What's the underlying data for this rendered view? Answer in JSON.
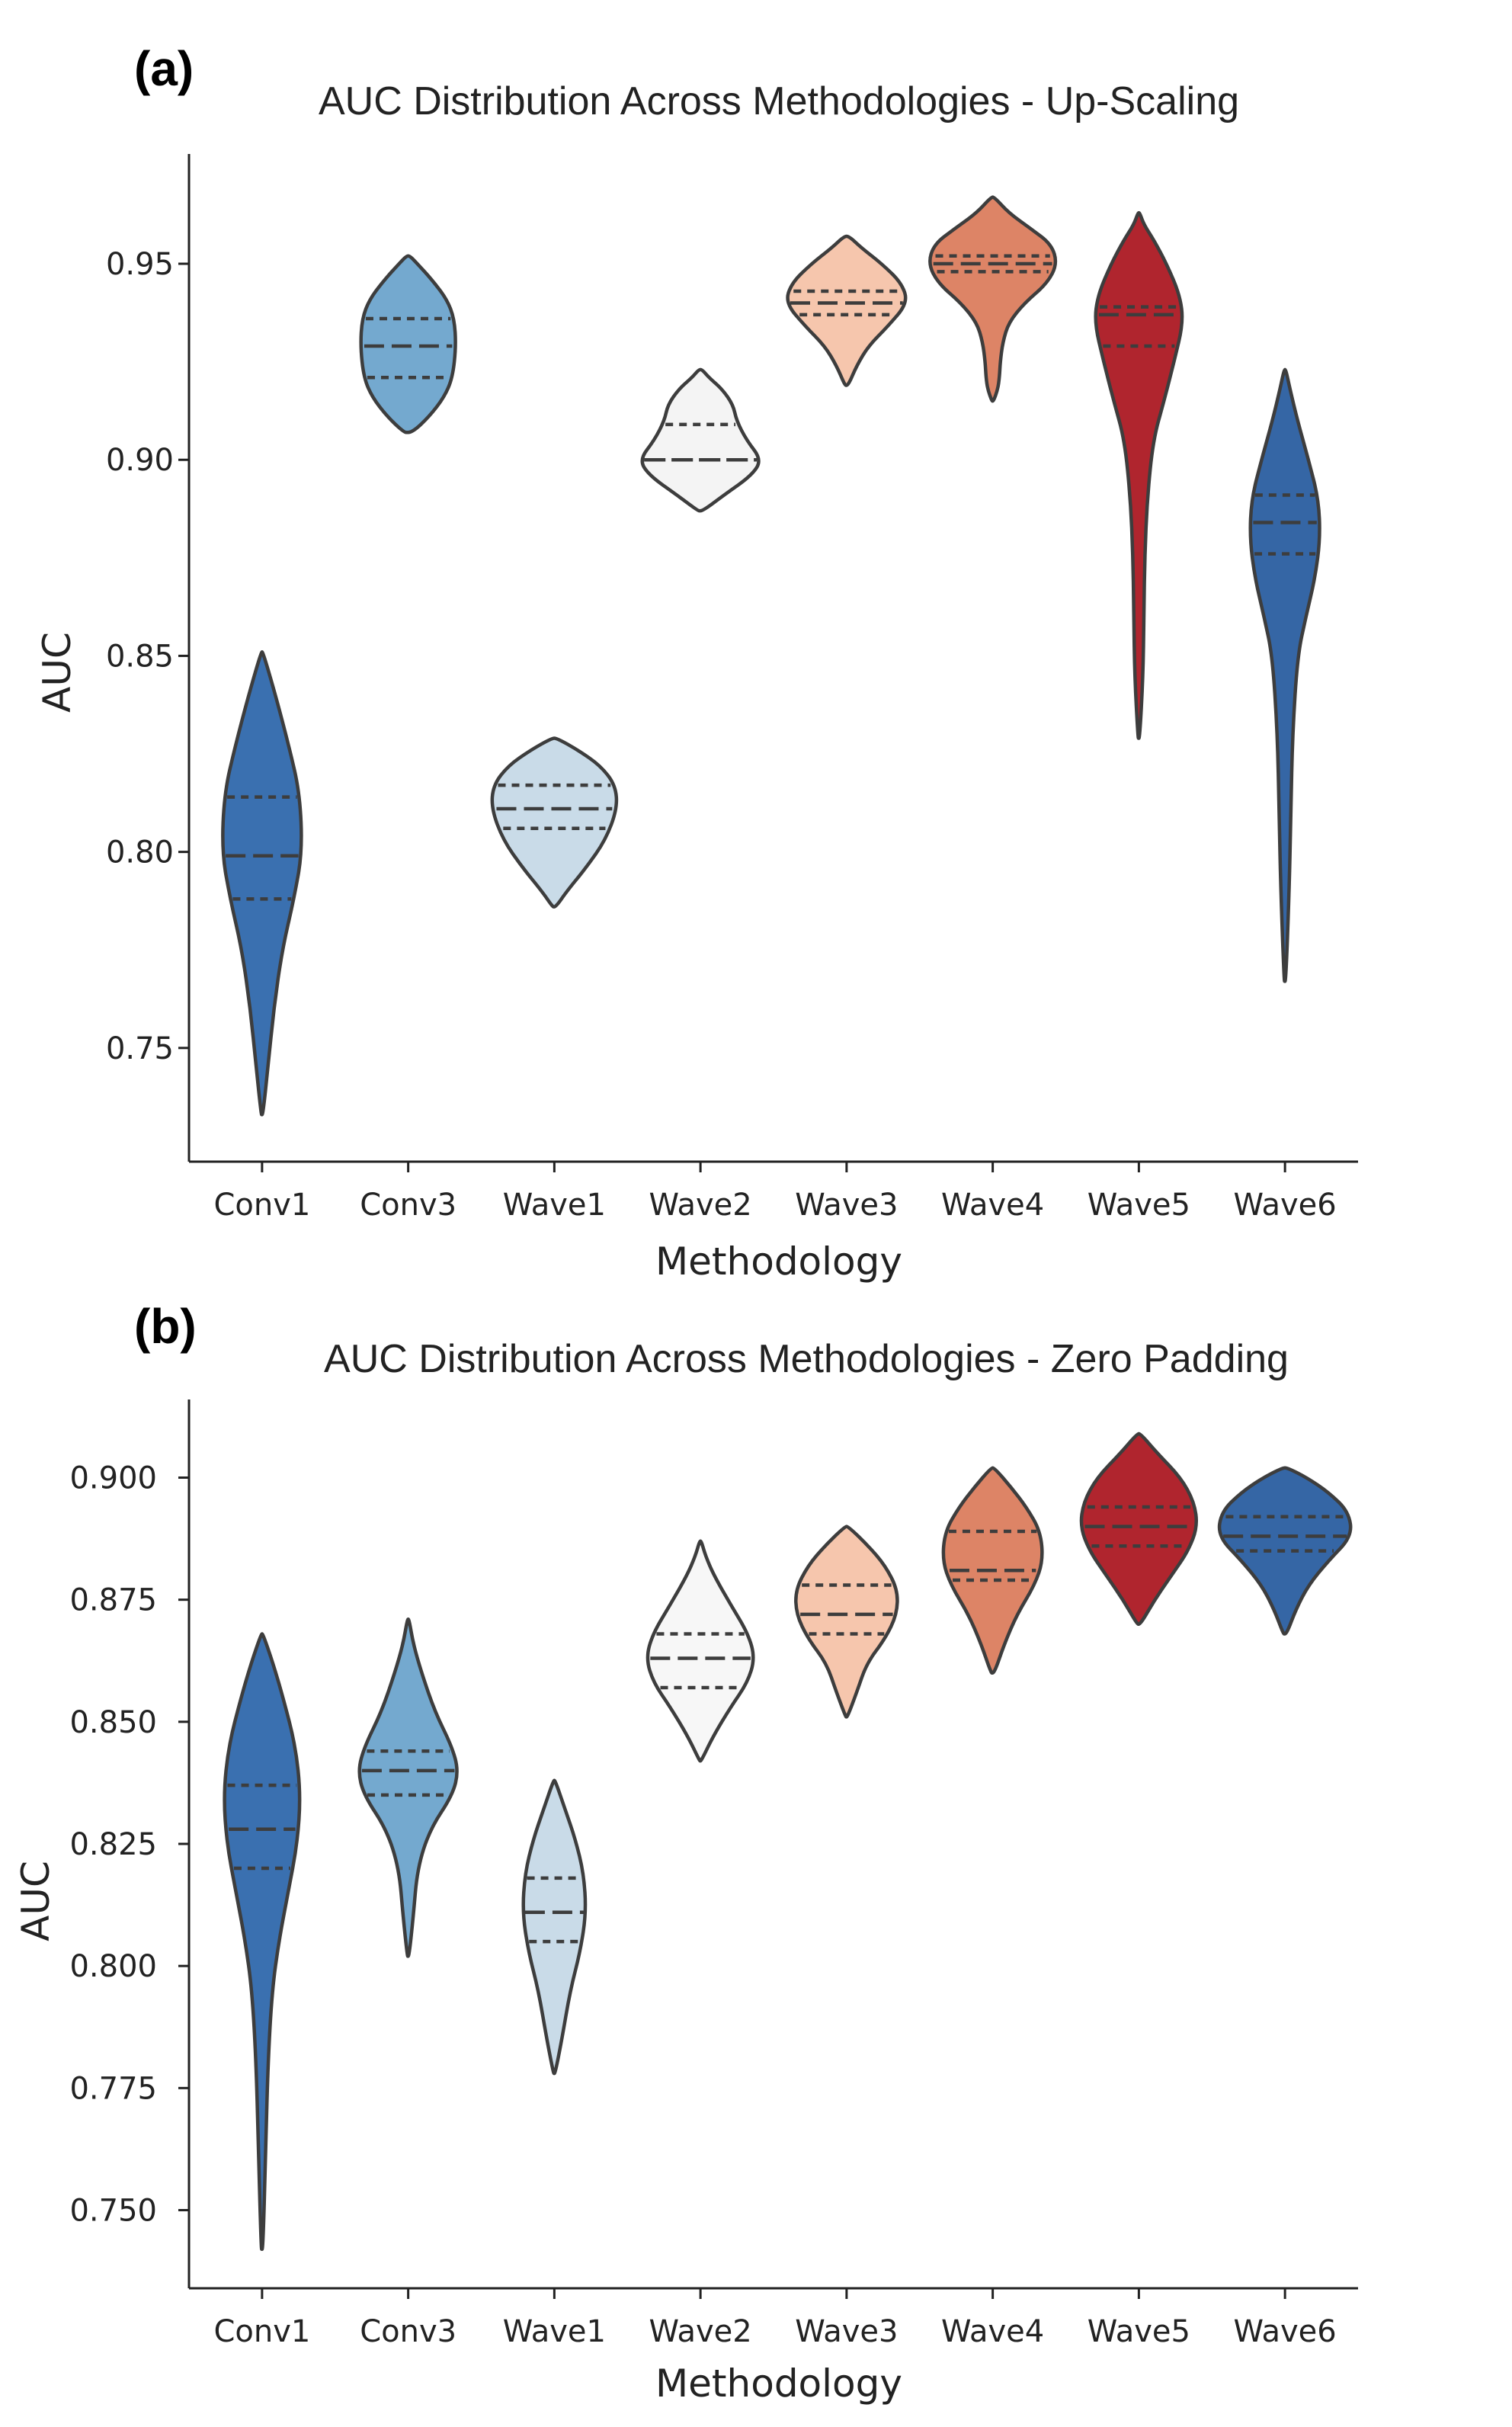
{
  "chart_data": [
    {
      "type": "violin",
      "panel_label": "(a)",
      "title": "AUC Distribution Across Methodologies - Up-Scaling",
      "xlabel": "Methodology",
      "ylabel": "AUC",
      "ylim": [
        0.721,
        0.978
      ],
      "yticks": [
        0.75,
        0.8,
        0.85,
        0.9,
        0.95
      ],
      "ytick_labels": [
        "0.75",
        "0.80",
        "0.85",
        "0.90",
        "0.95"
      ],
      "grid": false,
      "categories": [
        "Conv1",
        "Conv3",
        "Wave1",
        "Wave2",
        "Wave3",
        "Wave4",
        "Wave5",
        "Wave6"
      ],
      "colors": [
        "#3a70b0",
        "#74a9cf",
        "#c9dbe8",
        "#f4f4f4",
        "#f6c6ad",
        "#dd8466",
        "#b0252e",
        "#3566a5"
      ],
      "violins": [
        {
          "min": 0.733,
          "max": 0.851,
          "q1": 0.788,
          "median": 0.799,
          "q3": 0.814,
          "profile": [
            [
              0.733,
              0.1
            ],
            [
              0.745,
              0.7
            ],
            [
              0.76,
              1.4
            ],
            [
              0.775,
              2.4
            ],
            [
              0.788,
              3.8
            ],
            [
              0.8,
              4.8
            ],
            [
              0.815,
              4.5
            ],
            [
              0.827,
              3.2
            ],
            [
              0.84,
              1.6
            ],
            [
              0.851,
              0.1
            ]
          ]
        },
        {
          "min": 0.907,
          "max": 0.952,
          "q1": 0.921,
          "median": 0.929,
          "q3": 0.936,
          "profile": [
            [
              0.907,
              0.5
            ],
            [
              0.911,
              2.5
            ],
            [
              0.916,
              4.3
            ],
            [
              0.921,
              5.3
            ],
            [
              0.929,
              5.7
            ],
            [
              0.936,
              5.5
            ],
            [
              0.941,
              4.6
            ],
            [
              0.946,
              2.8
            ],
            [
              0.95,
              1.1
            ],
            [
              0.952,
              0.2
            ]
          ]
        },
        {
          "min": 0.786,
          "max": 0.829,
          "q1": 0.806,
          "median": 0.811,
          "q3": 0.817,
          "profile": [
            [
              0.786,
              0.2
            ],
            [
              0.79,
              1.5
            ],
            [
              0.796,
              3.8
            ],
            [
              0.803,
              6.1
            ],
            [
              0.811,
              7.5
            ],
            [
              0.817,
              7.3
            ],
            [
              0.822,
              5.5
            ],
            [
              0.826,
              2.8
            ],
            [
              0.829,
              0.3
            ]
          ]
        },
        {
          "min": 0.887,
          "max": 0.923,
          "q1": 0.9,
          "median": 0.9,
          "q3": 0.909,
          "profile": [
            [
              0.887,
              0.3
            ],
            [
              0.891,
              2.8
            ],
            [
              0.896,
              6.1
            ],
            [
              0.9,
              7.3
            ],
            [
              0.905,
              5.5
            ],
            [
              0.91,
              4.3
            ],
            [
              0.914,
              3.9
            ],
            [
              0.918,
              2.6
            ],
            [
              0.921,
              1.0
            ],
            [
              0.923,
              0.2
            ]
          ]
        },
        {
          "min": 0.919,
          "max": 0.957,
          "q1": 0.937,
          "median": 0.94,
          "q3": 0.943,
          "profile": [
            [
              0.919,
              0.2
            ],
            [
              0.924,
              1.2
            ],
            [
              0.929,
              2.6
            ],
            [
              0.934,
              4.9
            ],
            [
              0.94,
              7.3
            ],
            [
              0.945,
              6.6
            ],
            [
              0.95,
              4.2
            ],
            [
              0.954,
              1.8
            ],
            [
              0.957,
              0.3
            ]
          ]
        },
        {
          "min": 0.915,
          "max": 0.967,
          "q1": 0.948,
          "median": 0.95,
          "q3": 0.952,
          "profile": [
            [
              0.915,
              0.1
            ],
            [
              0.918,
              0.6
            ],
            [
              0.921,
              0.8
            ],
            [
              0.925,
              0.9
            ],
            [
              0.93,
              1.2
            ],
            [
              0.935,
              1.9
            ],
            [
              0.94,
              3.8
            ],
            [
              0.945,
              6.5
            ],
            [
              0.95,
              7.7
            ],
            [
              0.955,
              7.0
            ],
            [
              0.959,
              4.5
            ],
            [
              0.963,
              1.9
            ],
            [
              0.967,
              0.2
            ]
          ]
        },
        {
          "min": 0.829,
          "max": 0.963,
          "q1": 0.929,
          "median": 0.937,
          "q3": 0.939,
          "profile": [
            [
              0.829,
              0.1
            ],
            [
              0.845,
              0.5
            ],
            [
              0.86,
              0.6
            ],
            [
              0.875,
              0.7
            ],
            [
              0.89,
              1.0
            ],
            [
              0.905,
              1.7
            ],
            [
              0.915,
              3.0
            ],
            [
              0.925,
              4.2
            ],
            [
              0.935,
              5.3
            ],
            [
              0.942,
              4.9
            ],
            [
              0.95,
              3.3
            ],
            [
              0.956,
              1.8
            ],
            [
              0.96,
              0.6
            ],
            [
              0.963,
              0.1
            ]
          ]
        },
        {
          "min": 0.767,
          "max": 0.923,
          "q1": 0.876,
          "median": 0.884,
          "q3": 0.891,
          "profile": [
            [
              0.767,
              0.1
            ],
            [
              0.79,
              0.5
            ],
            [
              0.81,
              0.7
            ],
            [
              0.83,
              0.9
            ],
            [
              0.85,
              1.5
            ],
            [
              0.86,
              2.5
            ],
            [
              0.87,
              3.6
            ],
            [
              0.88,
              4.2
            ],
            [
              0.89,
              4.0
            ],
            [
              0.9,
              2.8
            ],
            [
              0.91,
              1.5
            ],
            [
              0.918,
              0.6
            ],
            [
              0.923,
              0.1
            ]
          ]
        }
      ]
    },
    {
      "type": "violin",
      "panel_label": "(b)",
      "title": "AUC Distribution Across Methodologies - Zero Padding",
      "xlabel": "Methodology",
      "ylabel": "AUC",
      "ylim": [
        0.734,
        0.916
      ],
      "yticks": [
        0.75,
        0.775,
        0.8,
        0.825,
        0.85,
        0.875,
        0.9
      ],
      "ytick_labels": [
        "0.750",
        "0.775",
        "0.800",
        "0.825",
        "0.850",
        "0.875",
        "0.900"
      ],
      "grid": false,
      "categories": [
        "Conv1",
        "Conv3",
        "Wave1",
        "Wave2",
        "Wave3",
        "Wave4",
        "Wave5",
        "Wave6"
      ],
      "colors": [
        "#3a70b0",
        "#74a9cf",
        "#c9dbe8",
        "#f7f7f7",
        "#f6c6ad",
        "#dd8466",
        "#b0252e",
        "#3566a5"
      ],
      "violins": [
        {
          "min": 0.742,
          "max": 0.868,
          "q1": 0.82,
          "median": 0.828,
          "q3": 0.837,
          "profile": [
            [
              0.742,
              0.1
            ],
            [
              0.76,
              0.4
            ],
            [
              0.78,
              0.7
            ],
            [
              0.795,
              1.2
            ],
            [
              0.805,
              2.0
            ],
            [
              0.815,
              3.1
            ],
            [
              0.825,
              4.2
            ],
            [
              0.835,
              4.6
            ],
            [
              0.845,
              4.0
            ],
            [
              0.855,
              2.5
            ],
            [
              0.862,
              1.3
            ],
            [
              0.868,
              0.1
            ]
          ]
        },
        {
          "min": 0.802,
          "max": 0.871,
          "q1": 0.835,
          "median": 0.84,
          "q3": 0.844,
          "profile": [
            [
              0.802,
              0.1
            ],
            [
              0.81,
              0.6
            ],
            [
              0.82,
              1.1
            ],
            [
              0.828,
              2.6
            ],
            [
              0.835,
              5.3
            ],
            [
              0.84,
              6.0
            ],
            [
              0.845,
              5.2
            ],
            [
              0.852,
              3.2
            ],
            [
              0.86,
              1.6
            ],
            [
              0.866,
              0.6
            ],
            [
              0.871,
              0.1
            ]
          ]
        },
        {
          "min": 0.778,
          "max": 0.838,
          "q1": 0.805,
          "median": 0.811,
          "q3": 0.818,
          "profile": [
            [
              0.778,
              0.1
            ],
            [
              0.785,
              0.9
            ],
            [
              0.795,
              1.9
            ],
            [
              0.803,
              3.1
            ],
            [
              0.811,
              3.8
            ],
            [
              0.819,
              3.5
            ],
            [
              0.826,
              2.5
            ],
            [
              0.832,
              1.3
            ],
            [
              0.838,
              0.1
            ]
          ]
        },
        {
          "min": 0.842,
          "max": 0.887,
          "q1": 0.857,
          "median": 0.863,
          "q3": 0.868,
          "profile": [
            [
              0.842,
              0.1
            ],
            [
              0.847,
              1.5
            ],
            [
              0.853,
              3.6
            ],
            [
              0.858,
              5.6
            ],
            [
              0.863,
              6.5
            ],
            [
              0.868,
              5.7
            ],
            [
              0.874,
              3.6
            ],
            [
              0.88,
              1.6
            ],
            [
              0.884,
              0.6
            ],
            [
              0.887,
              0.1
            ]
          ]
        },
        {
          "min": 0.851,
          "max": 0.89,
          "q1": 0.868,
          "median": 0.872,
          "q3": 0.878,
          "profile": [
            [
              0.851,
              0.1
            ],
            [
              0.856,
              1.2
            ],
            [
              0.862,
              2.4
            ],
            [
              0.867,
              4.6
            ],
            [
              0.872,
              6.0
            ],
            [
              0.877,
              6.1
            ],
            [
              0.882,
              4.6
            ],
            [
              0.886,
              2.6
            ],
            [
              0.89,
              0.2
            ]
          ]
        },
        {
          "min": 0.86,
          "max": 0.902,
          "q1": 0.879,
          "median": 0.881,
          "q3": 0.889,
          "profile": [
            [
              0.86,
              0.2
            ],
            [
              0.866,
              1.4
            ],
            [
              0.872,
              2.9
            ],
            [
              0.878,
              5.0
            ],
            [
              0.883,
              6.0
            ],
            [
              0.889,
              5.7
            ],
            [
              0.894,
              4.0
            ],
            [
              0.898,
              2.2
            ],
            [
              0.902,
              0.2
            ]
          ]
        },
        {
          "min": 0.87,
          "max": 0.909,
          "q1": 0.886,
          "median": 0.89,
          "q3": 0.894,
          "profile": [
            [
              0.87,
              0.2
            ],
            [
              0.875,
              1.9
            ],
            [
              0.88,
              3.9
            ],
            [
              0.885,
              5.9
            ],
            [
              0.89,
              7.0
            ],
            [
              0.895,
              6.6
            ],
            [
              0.9,
              5.0
            ],
            [
              0.905,
              2.2
            ],
            [
              0.909,
              0.2
            ]
          ]
        },
        {
          "min": 0.868,
          "max": 0.902,
          "q1": 0.885,
          "median": 0.888,
          "q3": 0.892,
          "profile": [
            [
              0.868,
              0.2
            ],
            [
              0.873,
              1.3
            ],
            [
              0.878,
              2.8
            ],
            [
              0.883,
              5.2
            ],
            [
              0.888,
              8.0
            ],
            [
              0.893,
              7.6
            ],
            [
              0.897,
              5.2
            ],
            [
              0.9,
              2.6
            ],
            [
              0.902,
              0.3
            ]
          ]
        }
      ]
    }
  ]
}
